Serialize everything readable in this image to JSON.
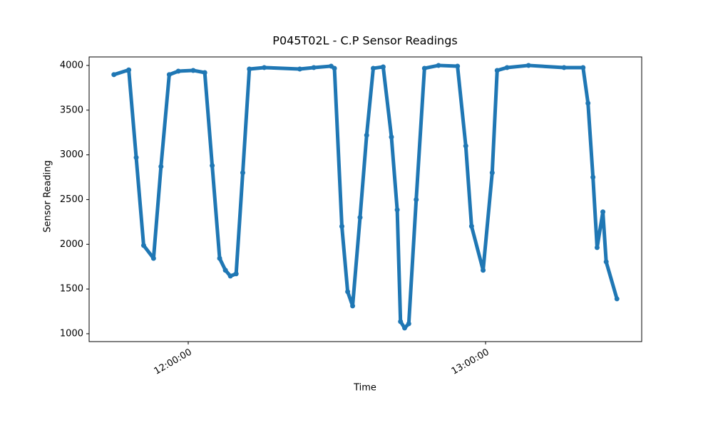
{
  "chart_data": {
    "type": "line",
    "title": "P045T02L - C.P Sensor Readings",
    "xlabel": "Time",
    "ylabel": "Sensor Reading",
    "xlim": [
      "11:40:00",
      "13:31:30"
    ],
    "xticks": [
      "12:00:00",
      "13:00:00"
    ],
    "ylim": [
      912,
      4095
    ],
    "yticks": [
      1000,
      1500,
      2000,
      2500,
      3000,
      3500,
      4000
    ],
    "grid": false,
    "series": [
      {
        "name": "C.P",
        "color": "#1f77b4",
        "markers": true,
        "x": [
          "11:45:00",
          "11:48:00",
          "11:49:30",
          "11:51:00",
          "11:53:00",
          "11:54:30",
          "11:56:10",
          "11:58:00",
          "12:01:00",
          "12:03:20",
          "12:04:50",
          "12:06:20",
          "12:07:30",
          "12:08:30",
          "12:09:40",
          "12:11:00",
          "12:12:20",
          "12:15:20",
          "12:22:30",
          "12:25:20",
          "12:28:50",
          "12:29:30",
          "12:31:00",
          "12:32:10",
          "12:33:10",
          "12:34:40",
          "12:36:00",
          "12:37:20",
          "12:39:20",
          "12:41:00",
          "12:42:10",
          "12:42:50",
          "12:43:40",
          "12:44:30",
          "12:46:00",
          "12:47:40",
          "12:50:30",
          "12:54:20",
          "12:56:00",
          "12:57:10",
          "12:59:30",
          "13:01:20",
          "13:02:20",
          "13:04:20",
          "13:08:40",
          "13:15:50",
          "13:19:40",
          "13:20:40",
          "13:21:40",
          "13:22:30",
          "13:23:40",
          "13:24:20",
          "13:26:30"
        ],
        "values": [
          3897,
          3950,
          2970,
          1987,
          1843,
          2870,
          3897,
          3936,
          3944,
          3920,
          2880,
          1843,
          1710,
          1645,
          1670,
          2800,
          3960,
          3976,
          3960,
          3976,
          3992,
          3968,
          2200,
          1470,
          1311,
          2300,
          3220,
          3968,
          3984,
          3200,
          2385,
          1136,
          1064,
          1112,
          2500,
          3968,
          4000,
          3992,
          3100,
          2202,
          1710,
          2800,
          3944,
          3976,
          4000,
          3976,
          3976,
          3578,
          2750,
          1963,
          2362,
          1804,
          1390
        ]
      }
    ]
  }
}
